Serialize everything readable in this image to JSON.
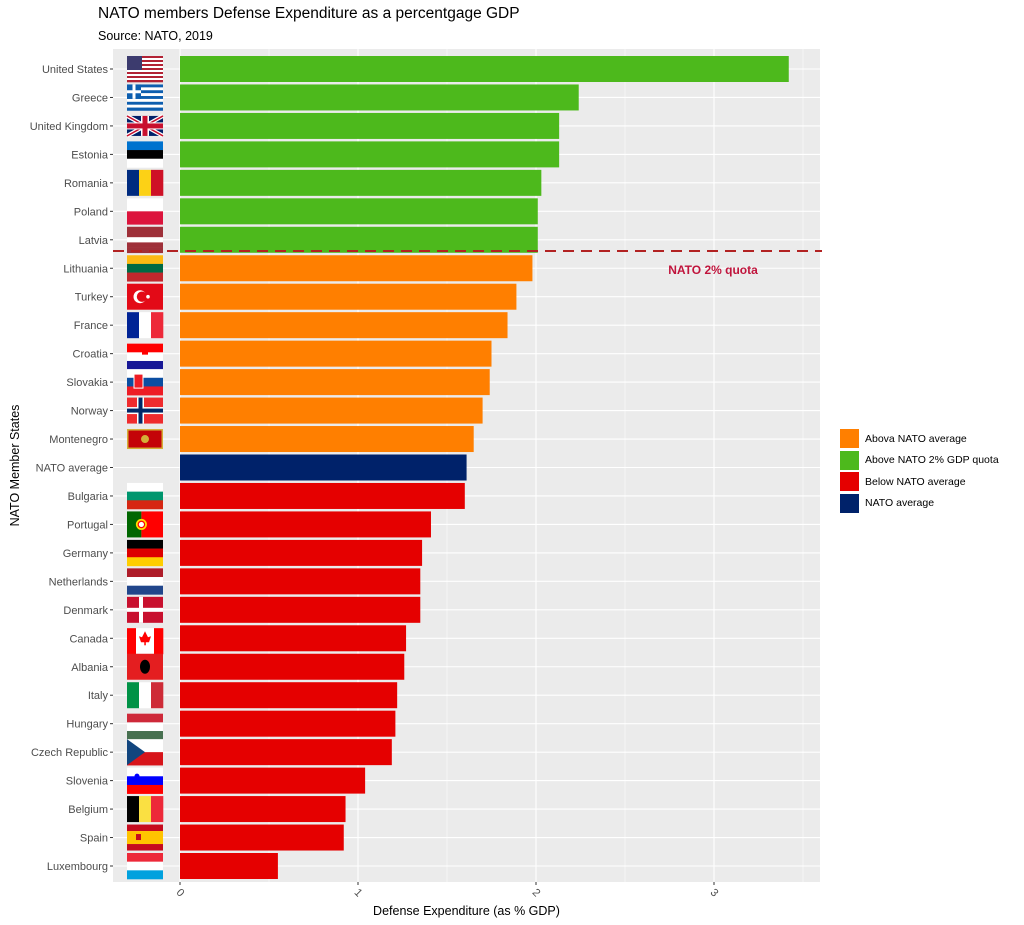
{
  "chart_data": {
    "type": "bar",
    "orientation": "horizontal",
    "title": "NATO members Defense Expenditure as a percentgage GDP",
    "subtitle": "Source: NATO, 2019",
    "xlabel": "Defense Expenditure (as % GDP)",
    "ylabel": "NATO Member States",
    "xlim": [
      -0.38,
      3.6
    ],
    "x_ticks": [
      "0",
      "1",
      "2",
      "3"
    ],
    "x_tick_values": [
      0,
      1,
      2,
      3
    ],
    "grid": true,
    "categories": [
      "United States",
      "Greece",
      "United Kingdom",
      "Estonia",
      "Romania",
      "Poland",
      "Latvia",
      "Lithuania",
      "Turkey",
      "France",
      "Croatia",
      "Slovakia",
      "Norway",
      "Montenegro",
      "NATO average",
      "Bulgaria",
      "Portugal",
      "Germany",
      "Netherlands",
      "Denmark",
      "Canada",
      "Albania",
      "Italy",
      "Hungary",
      "Czech Republic",
      "Slovenia",
      "Belgium",
      "Spain",
      "Luxembourg"
    ],
    "values": [
      3.42,
      2.24,
      2.13,
      2.13,
      2.03,
      2.01,
      2.01,
      1.98,
      1.89,
      1.84,
      1.75,
      1.74,
      1.7,
      1.65,
      1.61,
      1.6,
      1.41,
      1.36,
      1.35,
      1.35,
      1.27,
      1.26,
      1.22,
      1.21,
      1.19,
      1.04,
      0.93,
      0.92,
      0.55
    ],
    "groups": [
      "quota",
      "quota",
      "quota",
      "quota",
      "quota",
      "quota",
      "quota",
      "above",
      "above",
      "above",
      "above",
      "above",
      "above",
      "above",
      "avg",
      "below",
      "below",
      "below",
      "below",
      "below",
      "below",
      "below",
      "below",
      "below",
      "below",
      "below",
      "below",
      "below",
      "below"
    ],
    "legend": {
      "position": "right",
      "entries": [
        {
          "key": "above",
          "label": "Abova NATO average",
          "color": "#ff7f00"
        },
        {
          "key": "quota",
          "label": "Above NATO 2% GDP quota",
          "color": "#4db91c"
        },
        {
          "key": "below",
          "label": "Below NATO average",
          "color": "#e50000"
        },
        {
          "key": "avg",
          "label": "NATO average",
          "color": "#00226a"
        }
      ]
    },
    "reference_line": {
      "value_between_rows": [
        "Latvia",
        "Lithuania"
      ],
      "label": "NATO 2% quota",
      "color": "#b22222",
      "label_color": "#c0143c",
      "style": "dashed"
    },
    "flags": {
      "United States": "us-flag",
      "Greece": "greece-flag",
      "United Kingdom": "uk-flag",
      "Estonia": "estonia-flag",
      "Romania": "romania-flag",
      "Poland": "poland-flag",
      "Latvia": "latvia-flag",
      "Lithuania": "lithuania-flag",
      "Turkey": "turkey-flag",
      "France": "france-flag",
      "Croatia": "croatia-flag",
      "Slovakia": "slovakia-flag",
      "Norway": "norway-flag",
      "Montenegro": "montenegro-flag",
      "Bulgaria": "bulgaria-flag",
      "Portugal": "portugal-flag",
      "Germany": "germany-flag",
      "Netherlands": "netherlands-flag",
      "Denmark": "denmark-flag",
      "Canada": "canada-flag",
      "Albania": "albania-flag",
      "Italy": "italy-flag",
      "Hungary": "hungary-flag",
      "Czech Republic": "czech-flag",
      "Slovenia": "slovenia-flag",
      "Belgium": "belgium-flag",
      "Spain": "spain-flag",
      "Luxembourg": "luxembourg-flag"
    },
    "colors": {
      "panel": "#ebebeb",
      "grid": "#ffffff"
    }
  }
}
